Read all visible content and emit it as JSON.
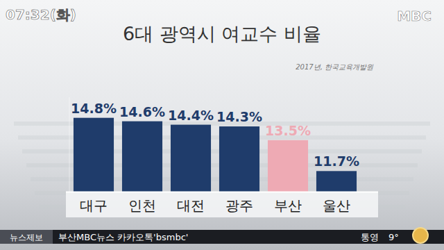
{
  "chart_data": {
    "type": "bar",
    "title": "6대 광역시 여교수 비율",
    "subtitle": "2017년, 한국교육개발원",
    "categories": [
      "대구",
      "인천",
      "대전",
      "광주",
      "부산",
      "울산"
    ],
    "values": [
      14.8,
      14.6,
      14.4,
      14.3,
      13.5,
      11.7
    ],
    "value_labels": [
      "14.8%",
      "14.6%",
      "14.4%",
      "14.3%",
      "13.5%",
      "11.7%"
    ],
    "colors": [
      "#1f3c6b",
      "#1f3c6b",
      "#1f3c6b",
      "#1f3c6b",
      "#eeaab4",
      "#1f3c6b"
    ],
    "ylim": [
      10.5,
      16
    ],
    "data_labels": true,
    "tick_labels": "x"
  },
  "overlay": {
    "clock": "07:32(화)",
    "logo": "MBC",
    "ticker_label": "뉴스제보",
    "ticker_text": "부산MBC뉴스 카카오톡'bsmbc'",
    "weather_city": "통영",
    "weather_temp": "9°"
  }
}
